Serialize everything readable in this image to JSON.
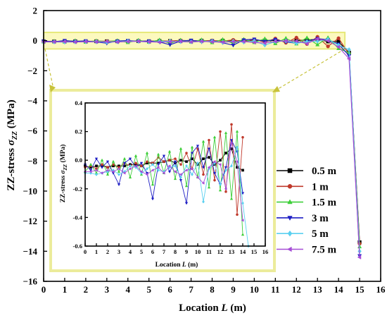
{
  "chart_data": {
    "type": "line",
    "x_units": "m",
    "main": {
      "xlabel_prefix": "Location ",
      "xlabel_var": "L",
      "xlabel_suffix": " (m)",
      "ylabel_prefix": "ZZ-stress ",
      "ylabel_var": "σ",
      "ylabel_sub": "ZZ",
      "ylabel_suffix": " (MPa)",
      "xlim": [
        0,
        16
      ],
      "ylim": [
        -16,
        2
      ],
      "xticks": [
        0,
        1,
        2,
        3,
        4,
        5,
        6,
        7,
        8,
        9,
        10,
        11,
        12,
        13,
        14,
        15,
        16
      ],
      "yticks": [
        2,
        0,
        -2,
        -4,
        -6,
        -8,
        -10,
        -12,
        -14,
        -16
      ],
      "highlight_region": {
        "x": [
          0,
          14.3
        ],
        "y": [
          -0.55,
          0.55
        ]
      }
    },
    "inset": {
      "xlabel_prefix": "Location ",
      "xlabel_var": "L",
      "xlabel_suffix": " (m)",
      "ylabel_prefix": "ZZ-stress ",
      "ylabel_var": "σ",
      "ylabel_sub": "ZZ",
      "ylabel_suffix": " (MPa)",
      "xlim": [
        0,
        16
      ],
      "ylim": [
        -0.6,
        0.4
      ],
      "xticks": [
        0,
        1,
        2,
        3,
        4,
        5,
        6,
        7,
        8,
        9,
        10,
        11,
        12,
        13,
        14,
        15,
        16
      ],
      "yticks": [
        0.4,
        0.2,
        0.0,
        -0.2,
        -0.4,
        -0.6
      ]
    },
    "legend_position": "right",
    "series": [
      {
        "name": "0.5 m",
        "color": "#000000",
        "marker": "square",
        "x": [
          0,
          0.5,
          1,
          1.5,
          2,
          2.5,
          3,
          3.5,
          4,
          4.5,
          5,
          5.5,
          6,
          6.5,
          7,
          7.5,
          8,
          8.5,
          9,
          9.5,
          10,
          10.5,
          11,
          11.5,
          12,
          12.5,
          13,
          13.5,
          14,
          14.5,
          15
        ],
        "y": [
          -0.04,
          -0.05,
          -0.04,
          -0.04,
          -0.05,
          -0.04,
          -0.04,
          -0.04,
          -0.03,
          -0.03,
          -0.04,
          -0.02,
          -0.02,
          -0.02,
          -0.01,
          0.0,
          -0.02,
          0.0,
          -0.01,
          0.01,
          -0.03,
          0.01,
          0.02,
          -0.03,
          0.0,
          0.05,
          0.08,
          -0.05,
          -0.07,
          -0.8,
          -13.4
        ]
      },
      {
        "name": "1 m",
        "color": "#c0392b",
        "marker": "circle",
        "x": [
          0,
          0.5,
          1,
          1.5,
          2,
          2.5,
          3,
          3.5,
          4,
          4.5,
          5,
          5.5,
          6,
          6.5,
          7,
          7.5,
          8,
          8.5,
          9,
          9.5,
          10,
          10.5,
          11,
          11.5,
          12,
          12.5,
          13,
          13.5,
          14,
          14.5,
          15
        ],
        "y": [
          -0.05,
          -0.04,
          -0.06,
          -0.03,
          -0.05,
          -0.03,
          -0.05,
          -0.02,
          -0.04,
          -0.02,
          -0.04,
          -0.01,
          -0.02,
          0.02,
          -0.01,
          0.0,
          0.01,
          -0.03,
          0.05,
          -0.06,
          0.08,
          -0.1,
          0.14,
          -0.14,
          0.2,
          -0.22,
          0.25,
          -0.38,
          0.16,
          -0.9,
          -13.5
        ]
      },
      {
        "name": "1.5 m",
        "color": "#3fcf3a",
        "marker": "triangle-up",
        "x": [
          0,
          0.5,
          1,
          1.5,
          2,
          2.5,
          3,
          3.5,
          4,
          4.5,
          5,
          5.5,
          6,
          6.5,
          7,
          7.5,
          8,
          8.5,
          9,
          9.5,
          10,
          10.5,
          11,
          11.5,
          12,
          12.5,
          13,
          13.5,
          14,
          14.5,
          15
        ],
        "y": [
          -0.08,
          -0.03,
          -0.09,
          0.0,
          -0.1,
          -0.01,
          -0.08,
          0.01,
          -0.12,
          0.03,
          -0.1,
          0.05,
          -0.17,
          0.04,
          -0.09,
          0.06,
          -0.13,
          0.08,
          -0.18,
          0.09,
          -0.12,
          0.13,
          -0.19,
          0.16,
          -0.21,
          0.19,
          -0.27,
          0.2,
          -0.52,
          -0.8,
          -13.7
        ]
      },
      {
        "name": "3 m",
        "color": "#1f1fc4",
        "marker": "triangle-down",
        "x": [
          0,
          0.5,
          1,
          1.5,
          2,
          2.5,
          3,
          3.5,
          4,
          4.5,
          5,
          5.5,
          6,
          6.5,
          7,
          7.5,
          8,
          8.5,
          9,
          9.5,
          10,
          10.5,
          11,
          11.5,
          12,
          12.5,
          13,
          13.5,
          14,
          14.5,
          15
        ],
        "y": [
          -0.03,
          -0.07,
          0.01,
          -0.05,
          -0.01,
          -0.09,
          -0.17,
          -0.02,
          0.01,
          -0.05,
          -0.02,
          -0.09,
          -0.27,
          -0.03,
          0.03,
          -0.08,
          -0.01,
          -0.14,
          -0.3,
          0.05,
          0.1,
          -0.05,
          0.08,
          -0.09,
          -0.17,
          -0.05,
          0.14,
          0.06,
          -0.23,
          -1.0,
          -14.3
        ]
      },
      {
        "name": "5 m",
        "color": "#5ad0f0",
        "marker": "diamond",
        "x": [
          0,
          0.5,
          1,
          1.5,
          2,
          2.5,
          3,
          3.5,
          4,
          4.5,
          5,
          5.5,
          6,
          6.5,
          7,
          7.5,
          8,
          8.5,
          9,
          9.5,
          10,
          10.5,
          11,
          11.5,
          12,
          12.5,
          13,
          13.5,
          14,
          14.5,
          15
        ],
        "y": [
          -0.09,
          -0.09,
          -0.1,
          -0.09,
          -0.08,
          -0.07,
          -0.1,
          -0.08,
          -0.04,
          -0.05,
          -0.09,
          -0.06,
          -0.03,
          -0.07,
          -0.08,
          -0.05,
          -0.04,
          -0.12,
          -0.04,
          -0.1,
          -0.02,
          -0.29,
          -0.06,
          -0.02,
          -0.17,
          -0.07,
          -0.04,
          0.09,
          -0.3,
          -0.6,
          -14.0
        ]
      },
      {
        "name": "7.5 m",
        "color": "#a64dd6",
        "marker": "triangle-left",
        "x": [
          0,
          0.5,
          1,
          1.5,
          2,
          2.5,
          3,
          3.5,
          4,
          4.5,
          5,
          5.5,
          6,
          6.5,
          7,
          7.5,
          8,
          8.5,
          9,
          9.5,
          10,
          10.5,
          11,
          11.5,
          12,
          12.5,
          13,
          13.5,
          14,
          14.5,
          15
        ],
        "y": [
          -0.08,
          -0.08,
          -0.07,
          -0.09,
          -0.07,
          -0.08,
          -0.06,
          -0.09,
          -0.06,
          -0.04,
          -0.08,
          -0.1,
          -0.07,
          -0.05,
          -0.09,
          -0.04,
          -0.08,
          -0.1,
          -0.07,
          -0.06,
          -0.12,
          -0.16,
          -0.05,
          -0.01,
          -0.03,
          -0.2,
          0.12,
          -0.01,
          -0.42,
          -1.2,
          -14.4
        ]
      }
    ]
  }
}
